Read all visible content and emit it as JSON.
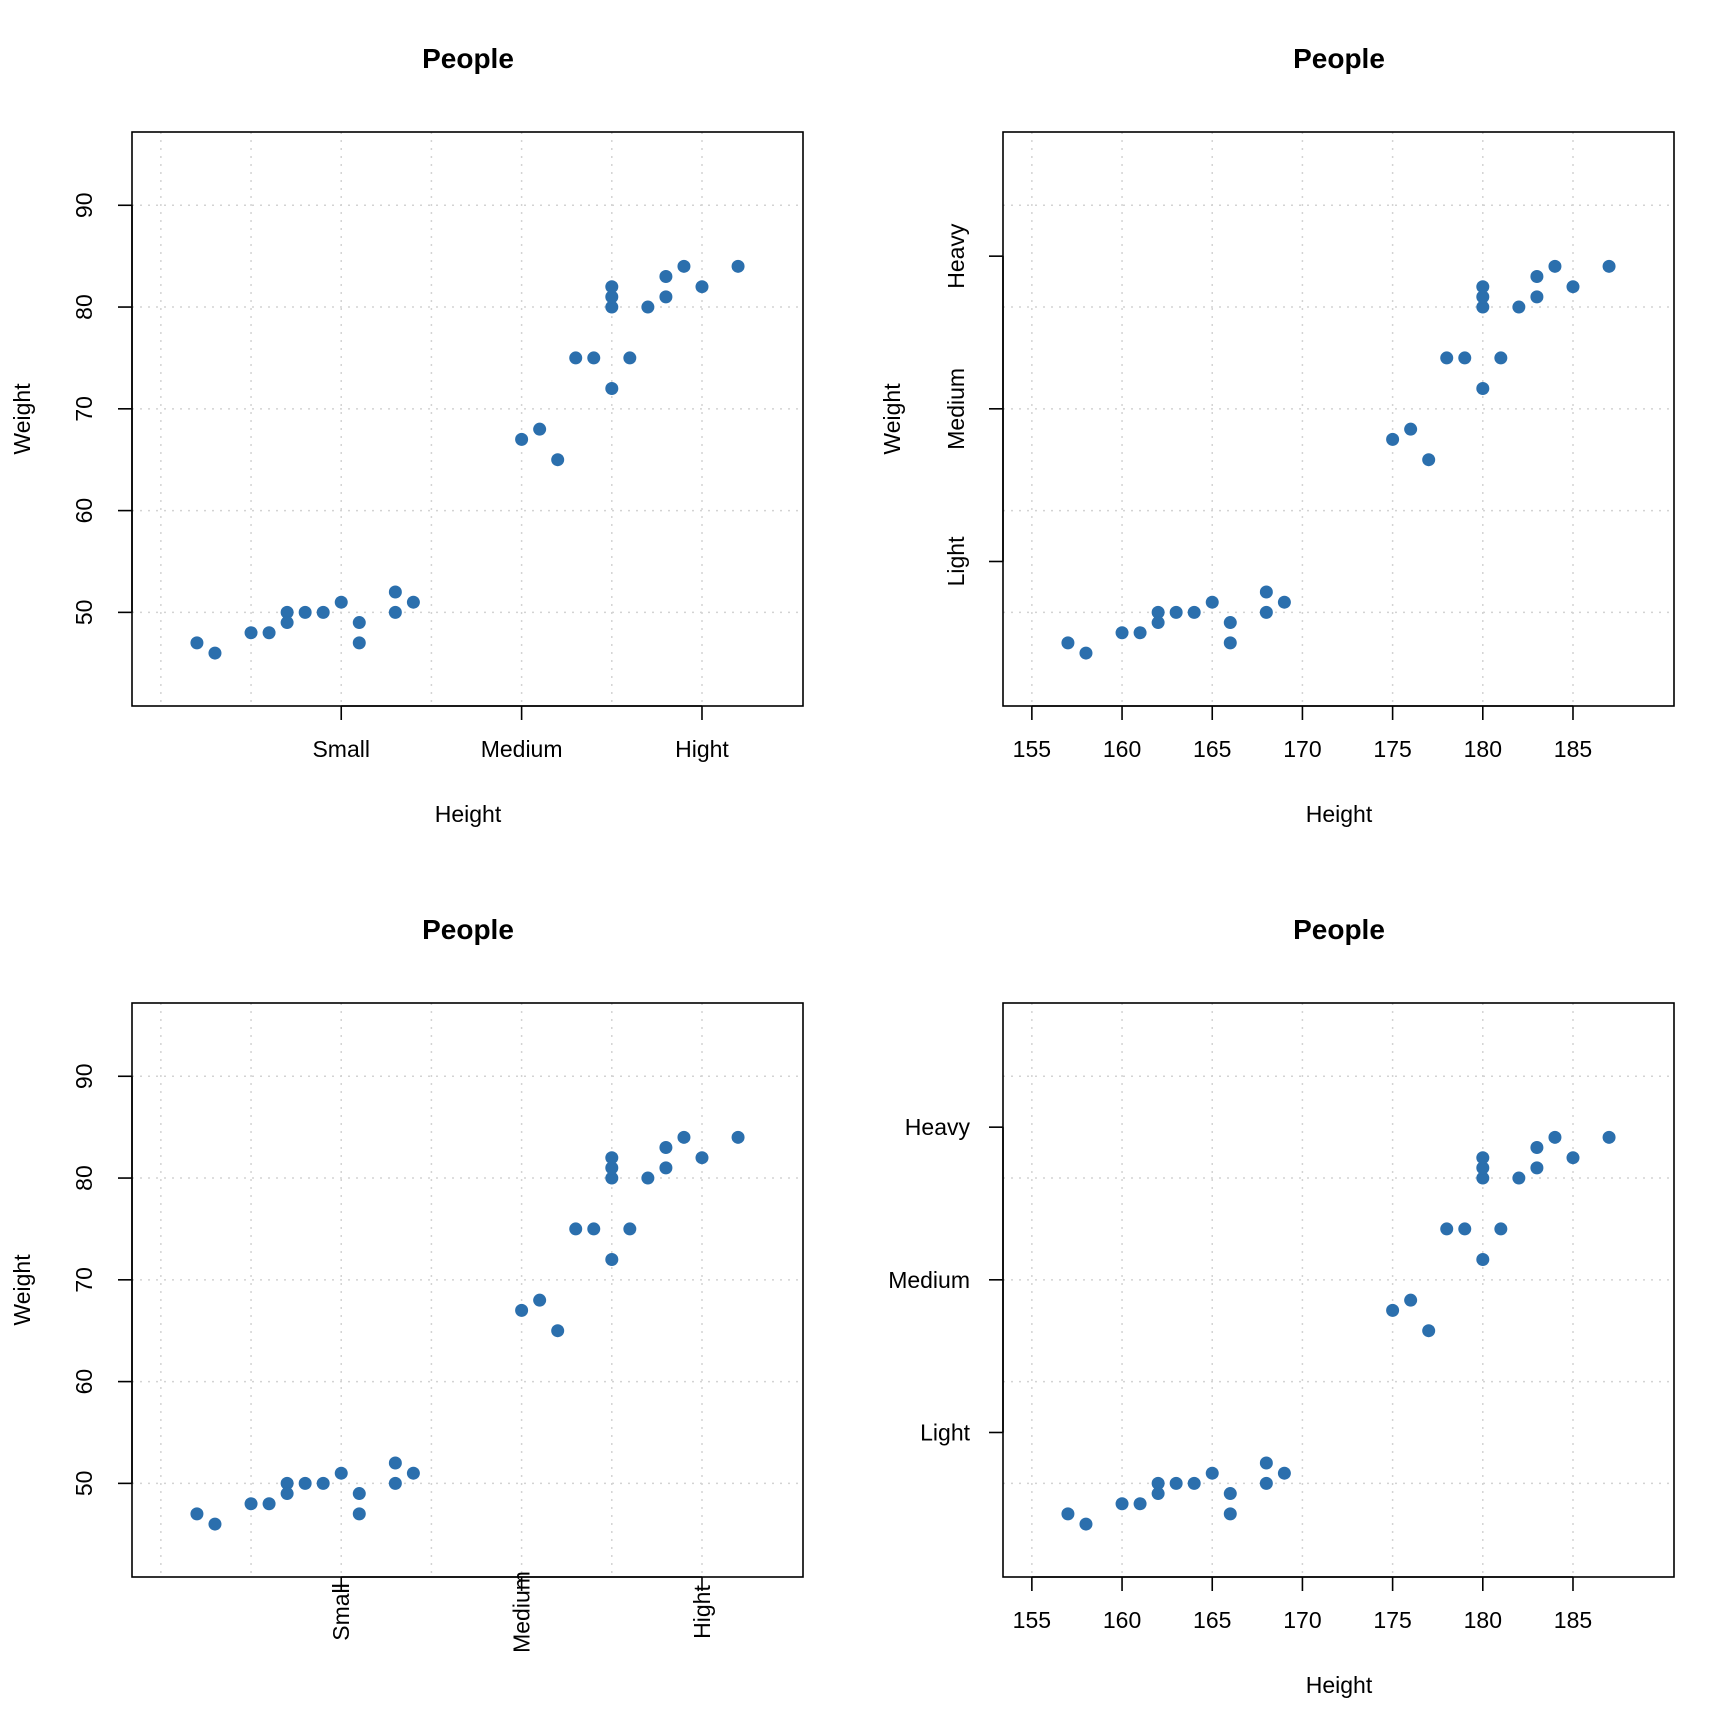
{
  "colors": {
    "point": "#2b6fad",
    "grid": "#d3d3d3",
    "axis": "#000000"
  },
  "chart_data": [
    {
      "type": "scatter",
      "title": "People",
      "xlabel": "Height",
      "ylabel": "Weight",
      "x_scale": "category-band",
      "x_ticks": [
        "Small",
        "Medium",
        "Hight"
      ],
      "x_tick_values": [
        165,
        175,
        185
      ],
      "x_tick_orientation": "horizontal",
      "xlim": [
        153.4,
        190.6
      ],
      "x_grid": [
        155,
        160,
        165,
        170,
        175,
        180,
        185
      ],
      "y_ticks": [
        50,
        60,
        70,
        80,
        90
      ],
      "ylim": [
        40.8,
        97.2
      ],
      "grid": true
    },
    {
      "type": "scatter",
      "title": "People",
      "xlabel": "Height",
      "ylabel": "Weight",
      "x_ticks": [
        155,
        160,
        165,
        170,
        175,
        180,
        185
      ],
      "xlim": [
        153.4,
        190.6
      ],
      "y_scale": "category-band",
      "y_ticks": [
        "Light",
        "Medium",
        "Heavy"
      ],
      "y_tick_values": [
        55,
        70,
        85
      ],
      "y_tick_orientation": "vertical",
      "ylim": [
        40.8,
        97.2
      ],
      "y_grid": [
        50,
        60,
        70,
        80,
        90
      ],
      "grid": true
    },
    {
      "type": "scatter",
      "title": "People",
      "xlabel": "",
      "ylabel": "Weight",
      "x_scale": "category-band",
      "x_ticks": [
        "Small",
        "Medium",
        "Hight"
      ],
      "x_tick_values": [
        165,
        175,
        185
      ],
      "x_tick_orientation": "vertical",
      "xlim": [
        153.4,
        190.6
      ],
      "x_grid": [
        155,
        160,
        165,
        170,
        175,
        180,
        185
      ],
      "y_ticks": [
        50,
        60,
        70,
        80,
        90
      ],
      "ylim": [
        40.8,
        97.2
      ],
      "grid": true
    },
    {
      "type": "scatter",
      "title": "People",
      "xlabel": "Height",
      "ylabel": "",
      "x_ticks": [
        155,
        160,
        165,
        170,
        175,
        180,
        185
      ],
      "xlim": [
        153.4,
        190.6
      ],
      "y_scale": "category-band",
      "y_ticks": [
        "Light",
        "Medium",
        "Heavy"
      ],
      "y_tick_values": [
        55,
        70,
        85
      ],
      "y_tick_orientation": "horizontal",
      "ylim": [
        40.8,
        97.2
      ],
      "y_grid": [
        50,
        60,
        70,
        80,
        90
      ],
      "grid": true
    }
  ],
  "points": {
    "x": [
      157,
      158,
      160,
      161,
      162,
      162,
      163,
      164,
      165,
      166,
      166,
      168,
      168,
      169,
      175,
      176,
      177,
      178,
      179,
      180,
      180,
      180,
      180,
      181,
      182,
      183,
      183,
      184,
      185,
      187
    ],
    "y": [
      47,
      46,
      48,
      48,
      50,
      49,
      50,
      50,
      51,
      49,
      47,
      52,
      50,
      51,
      67,
      68,
      65,
      75,
      75,
      72,
      80,
      81,
      82,
      75,
      80,
      83,
      81,
      84,
      82,
      84
    ]
  }
}
